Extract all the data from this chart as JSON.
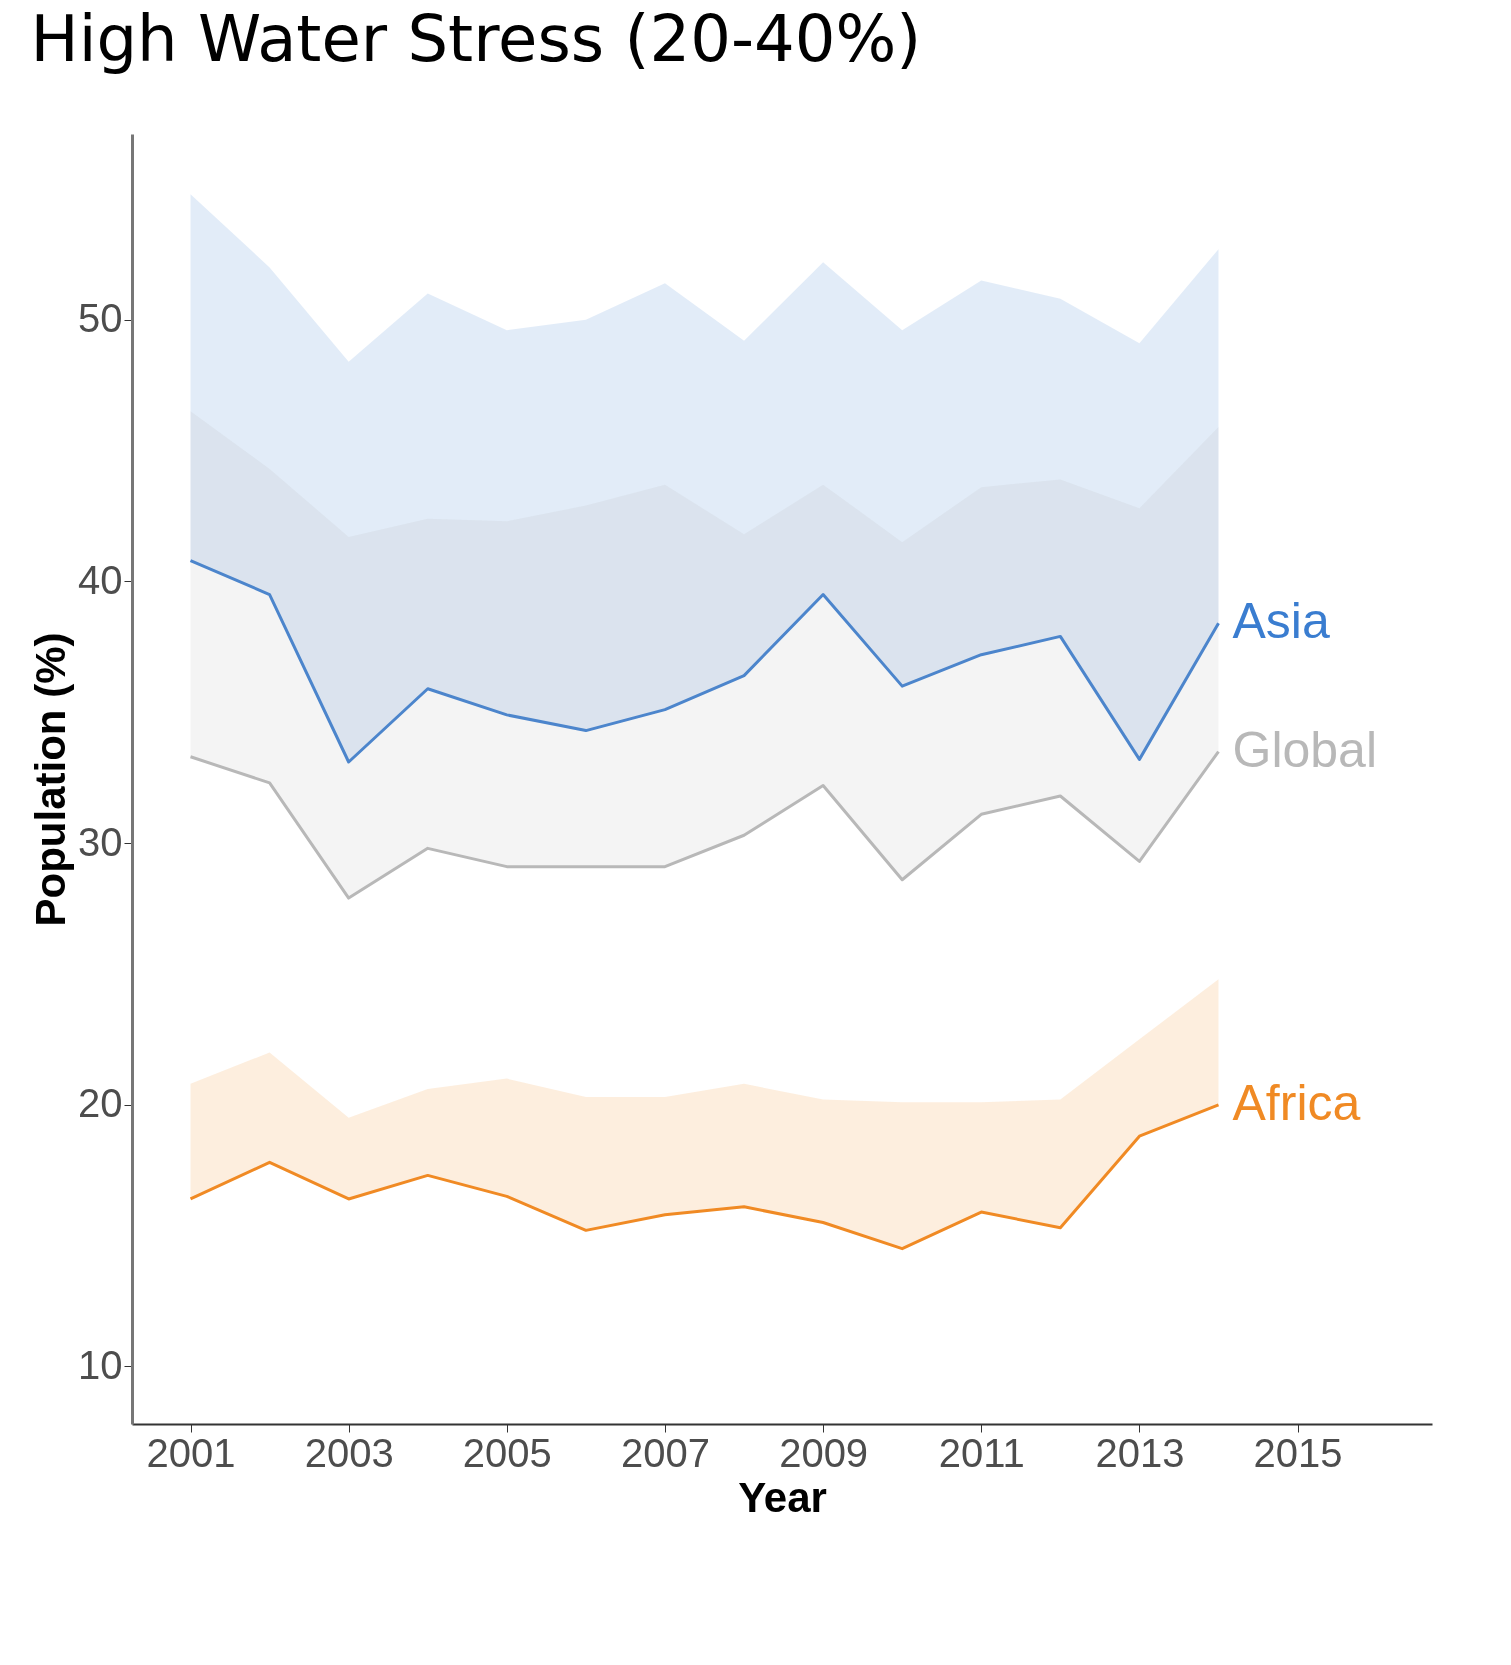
{
  "chart_data": {
    "type": "line",
    "title": "High Water Stress (20-40%)",
    "xlabel": "Year",
    "ylabel": "Population (%)",
    "x": [
      2001,
      2002,
      2003,
      2004,
      2005,
      2006,
      2007,
      2008,
      2009,
      2010,
      2011,
      2012,
      2013,
      2014
    ],
    "series": [
      {
        "name": "Asia",
        "color": "#3a7dd0",
        "values": [
          40.8,
          39.5,
          33.1,
          35.9,
          34.9,
          34.3,
          35.1,
          36.4,
          39.5,
          36.0,
          37.2,
          37.9,
          33.2,
          38.4
        ],
        "lower": [
          40.8,
          39.5,
          33.1,
          35.9,
          34.9,
          34.3,
          35.1,
          36.4,
          39.5,
          36.0,
          37.2,
          37.9,
          33.2,
          38.4
        ],
        "upper": [
          54.8,
          52.0,
          48.4,
          51.0,
          49.6,
          50.0,
          51.4,
          49.2,
          52.2,
          49.6,
          51.5,
          50.8,
          49.1,
          52.7
        ]
      },
      {
        "name": "Global",
        "color": "#b8b8b8",
        "values": [
          33.3,
          32.3,
          27.9,
          29.8,
          29.1,
          29.1,
          29.1,
          30.3,
          32.2,
          28.6,
          31.1,
          31.8,
          29.3,
          33.5
        ],
        "lower": [
          33.3,
          32.3,
          27.9,
          29.8,
          29.1,
          29.1,
          29.1,
          30.3,
          32.2,
          28.6,
          31.1,
          31.8,
          29.3,
          33.5
        ],
        "upper": [
          46.5,
          44.3,
          41.7,
          42.4,
          42.3,
          42.9,
          43.7,
          41.8,
          43.7,
          41.5,
          43.6,
          43.9,
          42.8,
          45.9
        ]
      },
      {
        "name": "Africa",
        "color": "#f08a24",
        "values": [
          16.4,
          17.8,
          16.4,
          17.3,
          16.5,
          15.2,
          15.8,
          16.1,
          15.5,
          14.5,
          15.9,
          15.3,
          18.8,
          20.0
        ],
        "lower": [
          16.4,
          17.8,
          16.4,
          17.3,
          16.5,
          15.2,
          15.8,
          16.1,
          15.5,
          14.5,
          15.9,
          15.3,
          18.8,
          20.0
        ],
        "upper": [
          20.8,
          22.0,
          19.5,
          20.6,
          21.0,
          20.3,
          20.3,
          20.8,
          20.2,
          20.1,
          20.1,
          20.2,
          22.5,
          24.8
        ]
      }
    ],
    "xlim": [
      2000.26,
      2016.7
    ],
    "xticks": [
      2001,
      2003,
      2005,
      2007,
      2009,
      2011,
      2013,
      2015
    ],
    "ylim": [
      7.8,
      57.1
    ],
    "yticks": [
      10,
      20,
      30,
      40,
      50
    ],
    "grid": false,
    "marker": "none",
    "line_style": "solid"
  }
}
